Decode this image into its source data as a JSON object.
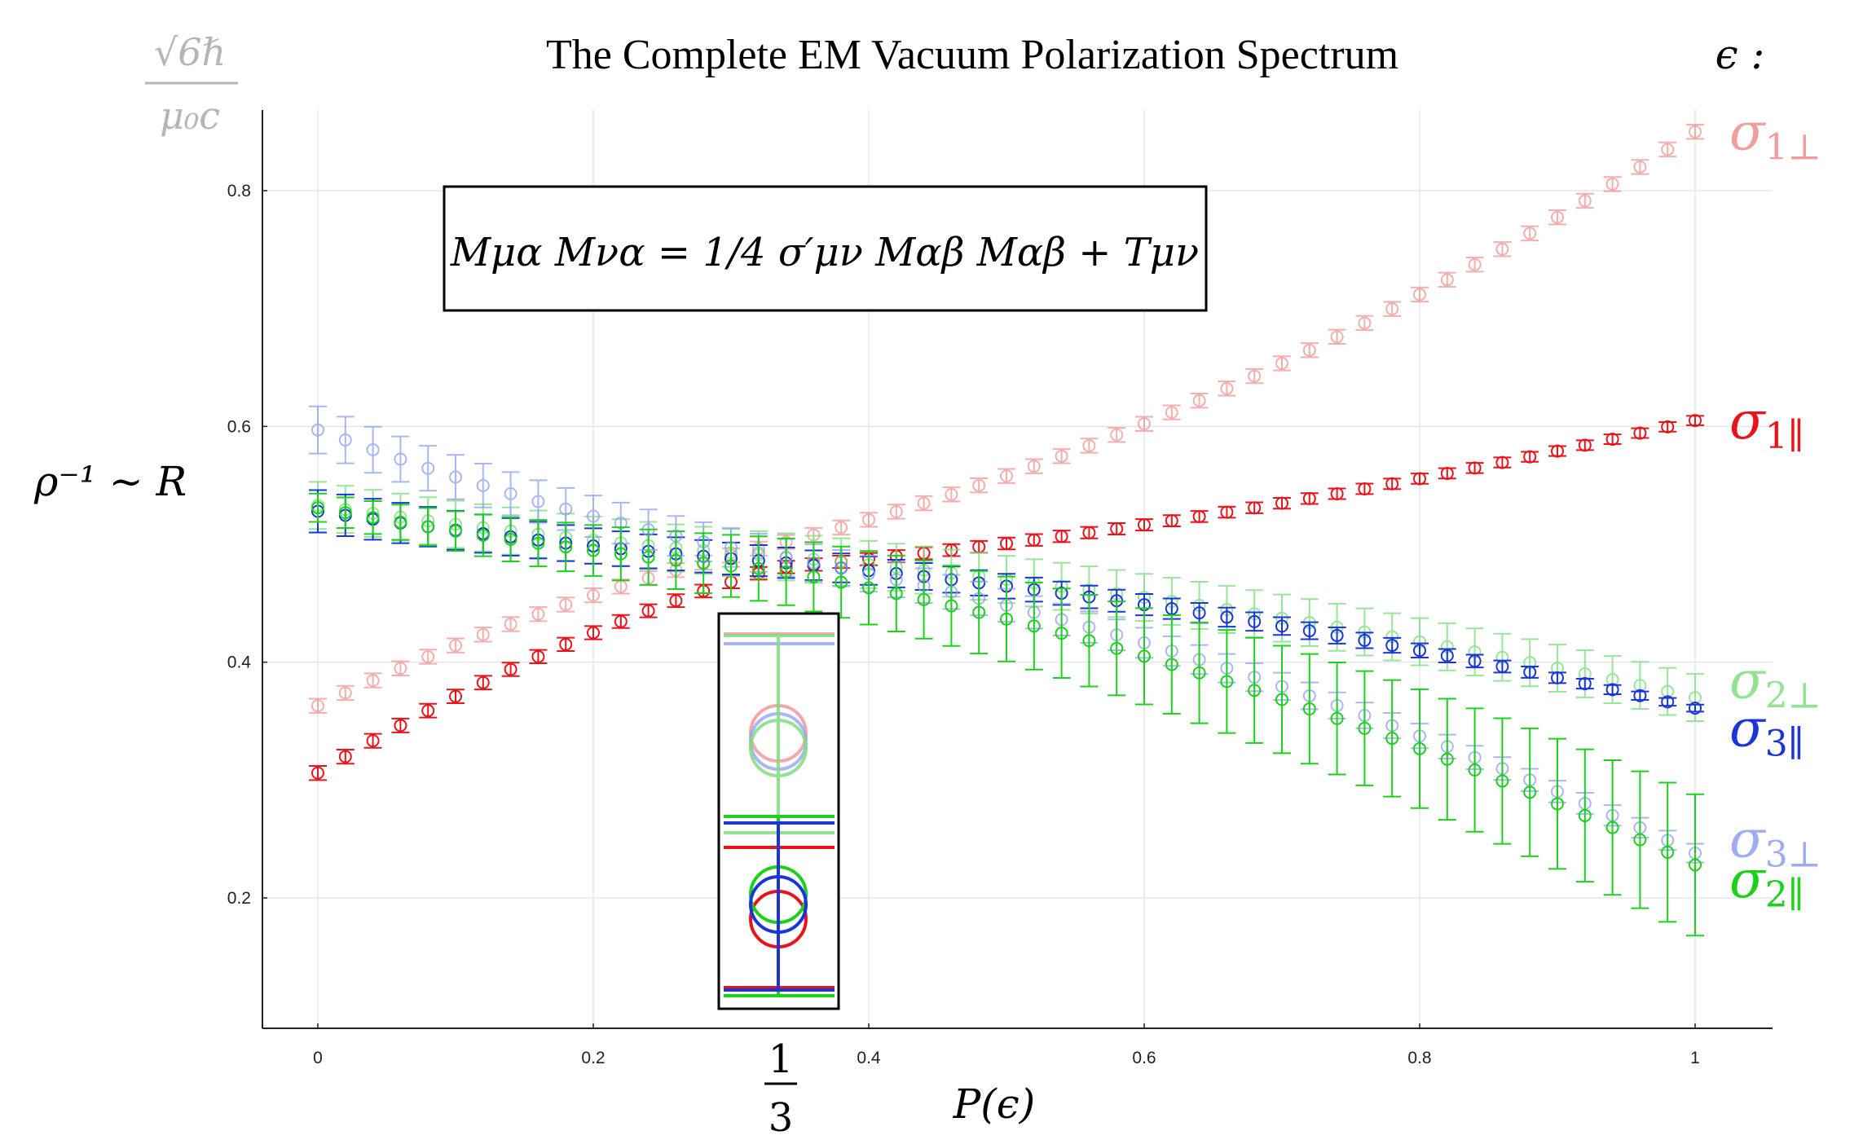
{
  "chart_data": {
    "type": "scatter",
    "title": "The Complete EM Vacuum Polarization Spectrum",
    "xlabel": "P(ϵ)",
    "ylabel": "ρ⁻¹ ~ R",
    "corner_label_numerator": "√6ℏ",
    "corner_label_denominator": "μ₀c",
    "legend_header": "ϵ :",
    "equation": "Mμα Mνα = 1/4 σ′μν Mαβ Mαβ + Tμν",
    "third_marker": {
      "numerator": "1",
      "denominator": "3",
      "x": 0.3333
    },
    "xlim": [
      0,
      1.0
    ],
    "ylim": [
      0.09,
      0.86
    ],
    "xticks": [
      "0",
      "0.2",
      "0.4",
      "0.6",
      "0.8",
      "1"
    ],
    "xtick_values": [
      0,
      0.2,
      0.4,
      0.6,
      0.8,
      1.0
    ],
    "yticks": [
      "0.2",
      "0.4",
      "0.6",
      "0.8"
    ],
    "ytick_values": [
      0.2,
      0.4,
      0.6,
      0.8
    ],
    "grid": true,
    "x_points": 51,
    "series": [
      {
        "name": "σ1⊥",
        "sym": "σ",
        "sub": "1⊥",
        "color": "#ef8c8c",
        "alpha": 0.7,
        "start": 0.363,
        "mid": 0.5,
        "end": 0.85,
        "err0": 0.006,
        "err1": 0.006
      },
      {
        "name": "σ1∥",
        "sym": "σ",
        "sub": "1∥",
        "color": "#e8141b",
        "alpha": 1.0,
        "start": 0.306,
        "mid": 0.48,
        "end": 0.605,
        "err0": 0.006,
        "err1": 0.004
      },
      {
        "name": "σ2⊥",
        "sym": "σ",
        "sub": "2⊥",
        "color": "#7fde7f",
        "alpha": 0.8,
        "start": 0.533,
        "mid": 0.49,
        "end": 0.37,
        "err0": 0.02,
        "err1": 0.02
      },
      {
        "name": "σ3∥",
        "sym": "σ",
        "sub": "3∥",
        "color": "#1a36d8",
        "alpha": 1.0,
        "start": 0.528,
        "mid": 0.485,
        "end": 0.361,
        "err0": 0.018,
        "err1": 0.003
      },
      {
        "name": "σ3⊥",
        "sym": "σ",
        "sub": "3⊥",
        "color": "#8c9ff0",
        "alpha": 0.75,
        "start": 0.597,
        "mid": 0.49,
        "end": 0.238,
        "err0": 0.02,
        "err1": 0.008
      },
      {
        "name": "σ2∥",
        "sym": "σ",
        "sub": "2∥",
        "color": "#1bd11b",
        "alpha": 1.0,
        "start": 0.531,
        "mid": 0.478,
        "end": 0.228,
        "err0": 0.012,
        "err1": 0.06
      }
    ]
  }
}
